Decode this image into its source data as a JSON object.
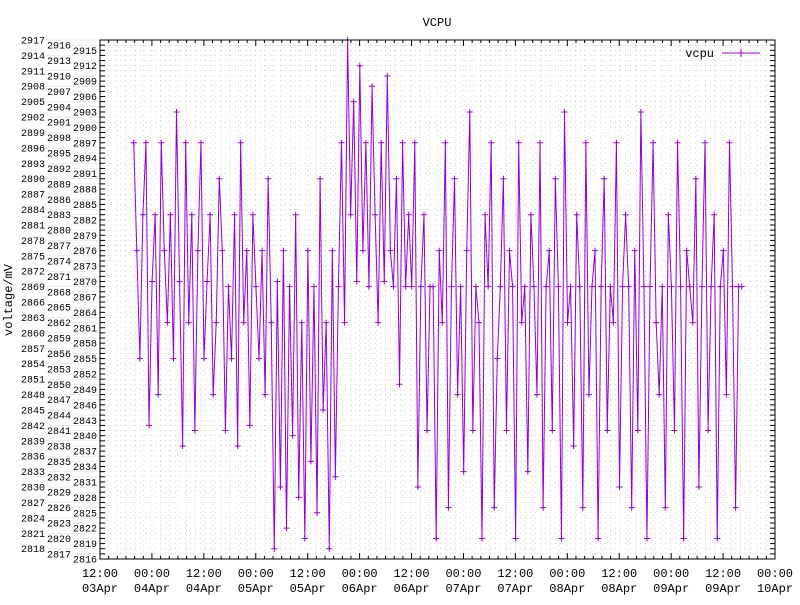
{
  "chart_data": {
    "type": "line",
    "title": "VCPU",
    "xlabel": "",
    "ylabel": "voltage/mV",
    "ylim": [
      2816,
      2917
    ],
    "ytick_step": 1,
    "grid": true,
    "legend_position": "top-right",
    "x_origin_label": "03Apr 12:00",
    "x_range_hours": [
      0,
      156
    ],
    "x_tick_step_hours": 12,
    "xtick_labels": [
      [
        "12:00",
        "03Apr"
      ],
      [
        "00:00",
        "04Apr"
      ],
      [
        "12:00",
        "04Apr"
      ],
      [
        "00:00",
        "05Apr"
      ],
      [
        "12:00",
        "05Apr"
      ],
      [
        "00:00",
        "06Apr"
      ],
      [
        "12:00",
        "06Apr"
      ],
      [
        "00:00",
        "07Apr"
      ],
      [
        "12:00",
        "07Apr"
      ],
      [
        "00:00",
        "08Apr"
      ],
      [
        "12:00",
        "08Apr"
      ],
      [
        "00:00",
        "09Apr"
      ],
      [
        "12:00",
        "09Apr"
      ],
      [
        "00:00",
        "10Apr"
      ]
    ],
    "series": [
      {
        "name": "vcpu",
        "color": "#9400d3",
        "x_start_hours": 7.8,
        "x_end_hours": 148.3,
        "values": [
          2897,
          2876,
          2855,
          2883,
          2897,
          2842,
          2870,
          2883,
          2848,
          2897,
          2876,
          2862,
          2883,
          2855,
          2903,
          2870,
          2838,
          2897,
          2862,
          2883,
          2841,
          2876,
          2897,
          2855,
          2870,
          2883,
          2848,
          2862,
          2890,
          2876,
          2841,
          2869,
          2855,
          2883,
          2838,
          2897,
          2862,
          2876,
          2842,
          2883,
          2869,
          2855,
          2876,
          2848,
          2890,
          2862,
          2818,
          2870,
          2830,
          2876,
          2822,
          2869,
          2840,
          2883,
          2828,
          2862,
          2820,
          2876,
          2835,
          2869,
          2825,
          2890,
          2845,
          2862,
          2818,
          2876,
          2832,
          2869,
          2897,
          2862,
          2917,
          2883,
          2905,
          2870,
          2912,
          2876,
          2897,
          2869,
          2908,
          2883,
          2862,
          2897,
          2870,
          2910,
          2876,
          2869,
          2890,
          2850,
          2897,
          2869,
          2883,
          2869,
          2897,
          2830,
          2869,
          2883,
          2841,
          2869,
          2869,
          2820,
          2876,
          2862,
          2897,
          2826,
          2869,
          2890,
          2848,
          2869,
          2833,
          2876,
          2903,
          2841,
          2869,
          2862,
          2820,
          2883,
          2869,
          2897,
          2826,
          2855,
          2869,
          2890,
          2841,
          2876,
          2869,
          2820,
          2897,
          2862,
          2869,
          2833,
          2883,
          2869,
          2848,
          2897,
          2826,
          2869,
          2876,
          2841,
          2890,
          2869,
          2820,
          2903,
          2862,
          2869,
          2838,
          2883,
          2869,
          2826,
          2897,
          2848,
          2869,
          2876,
          2820,
          2869,
          2890,
          2841,
          2869,
          2862,
          2897,
          2830,
          2869,
          2883,
          2869,
          2826,
          2876,
          2841,
          2903,
          2869,
          2820,
          2869,
          2897,
          2862,
          2848,
          2869,
          2826,
          2883,
          2869,
          2841,
          2897,
          2869,
          2820,
          2876,
          2869,
          2862,
          2890,
          2830,
          2869,
          2897,
          2841,
          2869,
          2883,
          2820,
          2869,
          2876,
          2848,
          2897,
          2869,
          2826,
          2869,
          2869
        ]
      }
    ]
  }
}
